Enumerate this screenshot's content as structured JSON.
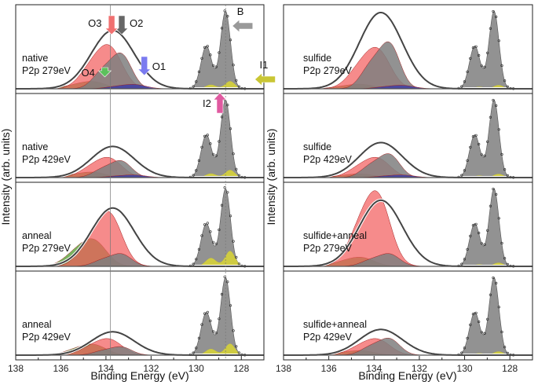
{
  "chart_data": {
    "type": "line",
    "title": "",
    "ylabel": "Intensity (arb. units)",
    "xlabel": "Binding Energy (eV)",
    "xlim": [
      138,
      127
    ],
    "x_ticks": [
      138,
      136,
      134,
      132,
      130,
      128
    ],
    "reference_lines_eV": [
      133.8,
      128.7
    ],
    "colors": {
      "gray": "#7f7f7f",
      "red": "#f25a5a",
      "darkred": "#a01c1c",
      "green": "#4f9a2a",
      "blue": "#3a3aa6",
      "yellow": "#d6d23a",
      "envelope": "#444444",
      "markers": "#222222"
    },
    "components": [
      {
        "name": "B",
        "center": 128.7,
        "width": 0.22,
        "color": "gray"
      },
      {
        "name": "B-spin-orbit",
        "center": 129.55,
        "width": 0.24,
        "color": "gray"
      },
      {
        "name": "I1",
        "center": 128.5,
        "width": 0.22,
        "color": "yellow"
      },
      {
        "name": "I1-spin-orbit",
        "center": 129.35,
        "width": 0.24,
        "color": "yellow"
      },
      {
        "name": "O1",
        "center": 132.7,
        "width": 0.5,
        "color": "blue"
      },
      {
        "name": "O2",
        "center": 133.3,
        "width": 0.45,
        "color": "gray"
      },
      {
        "name": "O3",
        "center": 133.8,
        "width": 0.55,
        "color": "red"
      },
      {
        "name": "O4",
        "center": 134.5,
        "width": 0.55,
        "color": "green"
      }
    ],
    "annotations": [
      {
        "label": "B",
        "color": "#999999",
        "direction": "left",
        "x_eV": 128.4
      },
      {
        "label": "I1",
        "color": "#c9c634",
        "direction": "left",
        "x_eV": 127.4
      },
      {
        "label": "I2",
        "color": "#e05aa0",
        "direction": "up",
        "x_eV": 128.95
      },
      {
        "label": "O1",
        "color": "#7b7bf0",
        "direction": "down",
        "x_eV": 132.3
      },
      {
        "label": "O2",
        "color": "#666666",
        "direction": "down",
        "x_eV": 133.3
      },
      {
        "label": "O3",
        "color": "#f07070",
        "direction": "down",
        "x_eV": 133.75
      },
      {
        "label": "O4",
        "color": "#5cc05c",
        "direction": "down",
        "x_eV": 134.05
      }
    ],
    "panels": [
      {
        "col": 0,
        "row": 0,
        "line1": "native",
        "line2": "P2p 279eV",
        "amps": {
          "B": 1.0,
          "I1": 0.1,
          "O1": 0.05,
          "O2": 0.42,
          "O3": 0.48,
          "O4": 0.08
        },
        "envelope_peak": 0.75
      },
      {
        "col": 0,
        "row": 1,
        "line1": "native",
        "line2": "P2p 429eV",
        "amps": {
          "B": 1.0,
          "I1": 0.1,
          "O1": 0.03,
          "O2": 0.2,
          "O3": 0.22,
          "O4": 0.06
        },
        "envelope_peak": 0.4
      },
      {
        "col": 0,
        "row": 2,
        "line1": "anneal",
        "line2": "P2p 279eV",
        "amps": {
          "B": 1.0,
          "I1": 0.2,
          "O1": 0.0,
          "O2": 0.15,
          "O3": 0.6,
          "O4": 0.3
        },
        "envelope_peak": 0.75
      },
      {
        "col": 0,
        "row": 3,
        "line1": "anneal",
        "line2": "P2p 429eV",
        "amps": {
          "B": 1.0,
          "I1": 0.15,
          "O1": 0.0,
          "O2": 0.1,
          "O3": 0.18,
          "O4": 0.12
        },
        "envelope_peak": 0.3
      },
      {
        "col": 1,
        "row": 0,
        "line1": "sulfide",
        "line2": "P2p 279eV",
        "amps": {
          "B": 1.0,
          "I1": 0.05,
          "O1": 0.04,
          "O2": 0.55,
          "O3": 0.45,
          "O4": 0.05
        },
        "envelope_peak": 0.98
      },
      {
        "col": 1,
        "row": 1,
        "line1": "sulfide",
        "line2": "P2p 429eV",
        "amps": {
          "B": 1.0,
          "I1": 0.05,
          "O1": 0.03,
          "O2": 0.28,
          "O3": 0.22,
          "O4": 0.04
        },
        "envelope_peak": 0.45
      },
      {
        "col": 1,
        "row": 2,
        "line1": "sulfide+anneal",
        "line2": "P2p 279eV",
        "amps": {
          "B": 1.0,
          "I1": 0.05,
          "O1": 0.0,
          "O2": 0.15,
          "O3": 0.82,
          "O4": 0.1
        },
        "envelope_peak": 0.85
      },
      {
        "col": 1,
        "row": 3,
        "line1": "sulfide+anneal",
        "line2": "P2p 429eV",
        "amps": {
          "B": 1.0,
          "I1": 0.05,
          "O1": 0.0,
          "O2": 0.2,
          "O3": 0.18,
          "O4": 0.05
        },
        "envelope_peak": 0.33
      }
    ]
  }
}
